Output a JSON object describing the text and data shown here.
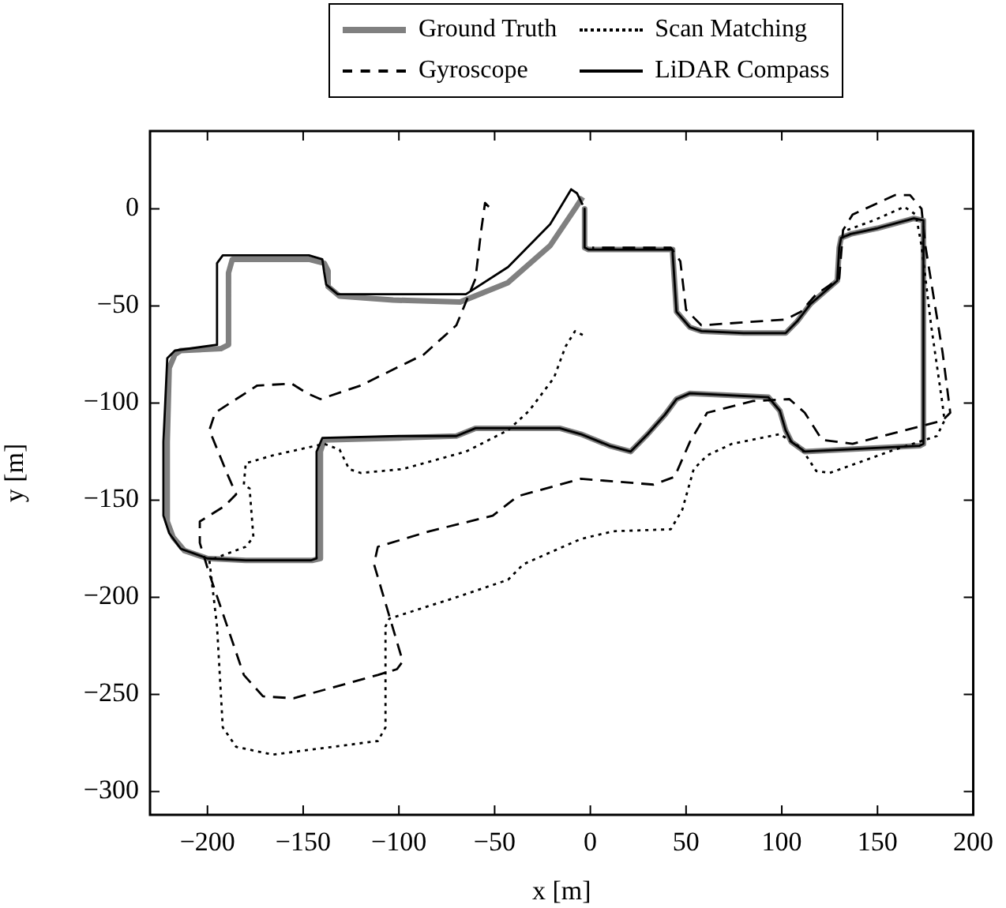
{
  "chart_data": {
    "type": "line",
    "xlabel": "x [m]",
    "ylabel": "y [m]",
    "xlim": [
      -230,
      200
    ],
    "ylim": [
      -312,
      40
    ],
    "xticks": [
      -200,
      -150,
      -100,
      -50,
      0,
      50,
      100,
      150,
      200
    ],
    "yticks": [
      -300,
      -250,
      -200,
      -150,
      -100,
      -50,
      0
    ],
    "grid": false,
    "legend": "top",
    "series": [
      {
        "name": "Ground Truth",
        "color": "#808080",
        "line_style": "solid",
        "x": [
          -3,
          -3,
          -1,
          43,
          43,
          45,
          52,
          58,
          80,
          102,
          108,
          115,
          129,
          130,
          131,
          136,
          150,
          169,
          174,
          174,
          172,
          112,
          105,
          102,
          99,
          93,
          52,
          45,
          39,
          30,
          21,
          10,
          -5,
          -16,
          -60,
          -70,
          -100,
          -139,
          -141,
          -141,
          -145,
          -180,
          -200,
          -212,
          -218,
          -221,
          -221,
          -220,
          -217,
          -214,
          -193,
          -189,
          -189,
          -187,
          -147,
          -139,
          -137,
          -137,
          -131,
          -103,
          -68,
          -43,
          -21,
          -8,
          -4
        ],
        "values": [
          0,
          -20,
          -21,
          -21,
          -23,
          -53,
          -61,
          -63,
          -64,
          -64,
          -58,
          -49,
          -37,
          -20,
          -15,
          -13,
          -10,
          -5,
          -6,
          -121,
          -122,
          -125,
          -120,
          -114,
          -104,
          -97,
          -95,
          -98,
          -106,
          -116,
          -125,
          -122,
          -116,
          -113,
          -113,
          -117,
          -118,
          -119,
          -125,
          -180,
          -181,
          -181,
          -180,
          -176,
          -169,
          -161,
          -120,
          -82,
          -75,
          -73,
          -72,
          -70,
          -33,
          -26,
          -26,
          -28,
          -32,
          -40,
          -45,
          -47,
          -48,
          -38,
          -19,
          0,
          6
        ]
      },
      {
        "name": "Gyroscope",
        "color": "#000000",
        "line_style": "dashed",
        "x": [
          -53,
          -55,
          -57,
          -60,
          -70,
          -87,
          -120,
          -141,
          -148,
          -156,
          -174,
          -196,
          -199,
          -189,
          -185,
          -191,
          -204,
          -204,
          -199,
          -181,
          -171,
          -155,
          -111,
          -101,
          -98,
          -113,
          -111,
          -84,
          -51,
          -38,
          -5,
          33,
          44,
          52,
          61,
          85,
          104,
          112,
          121,
          137,
          184,
          188,
          184,
          175,
          173,
          167,
          159,
          137,
          132,
          130,
          118,
          110,
          102,
          58,
          50,
          47,
          42,
          1
        ],
        "values": [
          1,
          3,
          -11,
          -36,
          -60,
          -75,
          -91,
          -98,
          -95,
          -90,
          -91,
          -105,
          -114,
          -138,
          -147,
          -153,
          -161,
          -172,
          -188,
          -240,
          -251,
          -252,
          -240,
          -237,
          -233,
          -183,
          -174,
          -166,
          -158,
          -148,
          -139,
          -142,
          -138,
          -120,
          -105,
          -99,
          -98,
          -105,
          -119,
          -121,
          -109,
          -105,
          -74,
          -19,
          0,
          7,
          7,
          -3,
          -11,
          -36,
          -44,
          -53,
          -57,
          -60,
          -52,
          -27,
          -20,
          -20
        ]
      },
      {
        "name": "Scan Matching",
        "color": "#000000",
        "line_style": "dotted",
        "x": [
          -4,
          -8,
          -13,
          -19,
          -32,
          -43,
          -65,
          -98,
          -120,
          -126,
          -131,
          -139,
          -166,
          -180,
          -181,
          -178,
          -176,
          -180,
          -199,
          -195,
          -192,
          -185,
          -166,
          -111,
          -107,
          -107,
          -105,
          -70,
          -43,
          -35,
          -5,
          12,
          42,
          48,
          54,
          61,
          74,
          99,
          110,
          118,
          125,
          159,
          181,
          185,
          184,
          178,
          173,
          170,
          164,
          148,
          134
        ],
        "values": [
          -65,
          -63,
          -71,
          -87,
          -104,
          -114,
          -125,
          -134,
          -136,
          -134,
          -124,
          -121,
          -127,
          -131,
          -142,
          -144,
          -169,
          -174,
          -181,
          -215,
          -267,
          -277,
          -281,
          -274,
          -267,
          -215,
          -211,
          -200,
          -191,
          -183,
          -170,
          -166,
          -165,
          -155,
          -134,
          -127,
          -121,
          -116,
          -123,
          -135,
          -136,
          -124,
          -117,
          -109,
          -101,
          -60,
          -19,
          -3,
          1,
          -6,
          -11
        ]
      },
      {
        "name": "LiDAR Compass",
        "color": "#000000",
        "line_style": "solid",
        "x": [
          -3,
          -3,
          -1,
          43,
          43,
          45,
          52,
          58,
          80,
          102,
          108,
          115,
          129,
          130,
          131,
          136,
          150,
          169,
          174,
          174,
          172,
          112,
          105,
          102,
          99,
          93,
          52,
          45,
          39,
          30,
          21,
          10,
          -5,
          -16,
          -60,
          -70,
          -100,
          -140,
          -143,
          -143,
          -146,
          -180,
          -200,
          -214,
          -220,
          -223,
          -223,
          -221,
          -217,
          -195,
          -195,
          -192,
          -188,
          -147,
          -140,
          -139,
          -138,
          -132,
          -103,
          -65,
          -43,
          -21,
          -10,
          -7,
          -4
        ],
        "values": [
          0,
          -20,
          -21,
          -21,
          -23,
          -53,
          -61,
          -63,
          -64,
          -64,
          -58,
          -49,
          -37,
          -20,
          -15,
          -13,
          -10,
          -5,
          -6,
          -121,
          -122,
          -125,
          -120,
          -114,
          -104,
          -97,
          -95,
          -98,
          -106,
          -116,
          -125,
          -122,
          -116,
          -113,
          -113,
          -117,
          -117,
          -118,
          -125,
          -180,
          -181,
          -181,
          -180,
          -175,
          -167,
          -158,
          -120,
          -77,
          -73,
          -70,
          -28,
          -24,
          -24,
          -24,
          -26,
          -33,
          -39,
          -44,
          -44,
          -44,
          -30,
          -8,
          10,
          8,
          2
        ]
      }
    ]
  }
}
